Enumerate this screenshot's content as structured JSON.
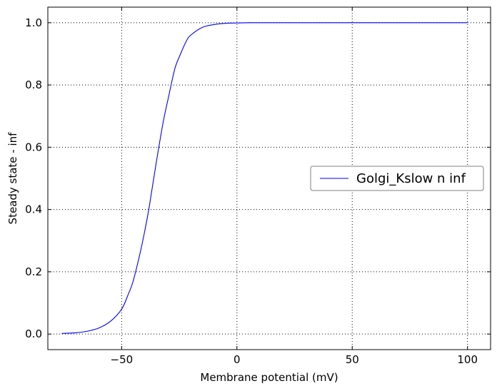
{
  "chart_data": {
    "type": "line",
    "xlabel": "Membrane potential (mV)",
    "ylabel": "Steady state - inf",
    "xlim": [
      -82,
      110
    ],
    "ylim": [
      -0.05,
      1.05
    ],
    "xticks": [
      -50,
      0,
      50,
      100
    ],
    "xtick_labels": [
      "−50",
      "0",
      "50",
      "100"
    ],
    "yticks": [
      0.0,
      0.2,
      0.4,
      0.6,
      0.8,
      1.0
    ],
    "ytick_labels": [
      "0.0",
      "0.2",
      "0.4",
      "0.6",
      "0.8",
      "1.0"
    ],
    "grid": true,
    "legend_position": "center-right",
    "series": [
      {
        "name": "Golgi_Kslow n inf",
        "color": "#0000ff",
        "x": [
          -76,
          -70,
          -65,
          -60,
          -55,
          -50,
          -47,
          -45,
          -42,
          -40,
          -38,
          -35,
          -32,
          -30,
          -27,
          -25,
          -22,
          -20,
          -15,
          -10,
          -5,
          0,
          5,
          10,
          20,
          50,
          100
        ],
        "y": [
          0.002,
          0.004,
          0.009,
          0.019,
          0.04,
          0.08,
          0.13,
          0.17,
          0.26,
          0.33,
          0.41,
          0.55,
          0.68,
          0.75,
          0.85,
          0.89,
          0.94,
          0.96,
          0.985,
          0.994,
          0.998,
          0.999,
          1.0,
          1.0,
          1.0,
          1.0,
          1.0
        ]
      }
    ]
  }
}
